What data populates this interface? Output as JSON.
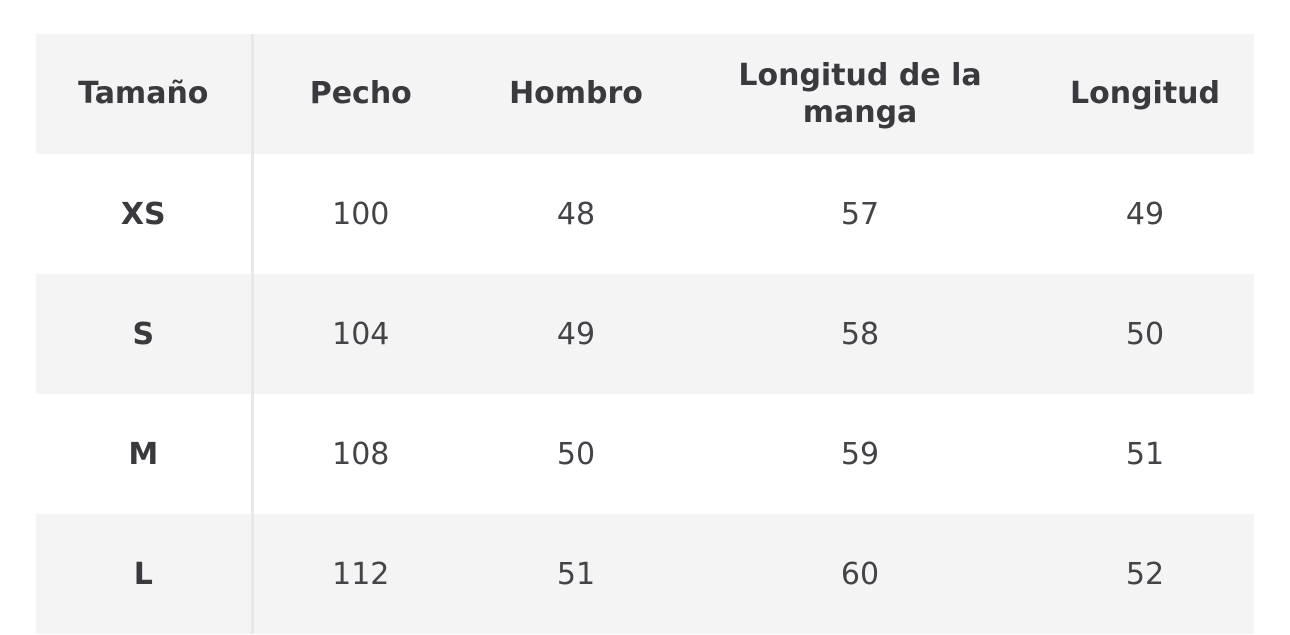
{
  "table": {
    "header": [
      "Tamaño",
      "Pecho",
      "Hombro",
      "Longitud de la manga",
      "Longitud"
    ],
    "rows": [
      [
        "XS",
        100,
        48,
        57,
        49
      ],
      [
        "S",
        104,
        49,
        58,
        50
      ],
      [
        "M",
        108,
        50,
        59,
        51
      ],
      [
        "L",
        112,
        51,
        60,
        52
      ]
    ]
  }
}
